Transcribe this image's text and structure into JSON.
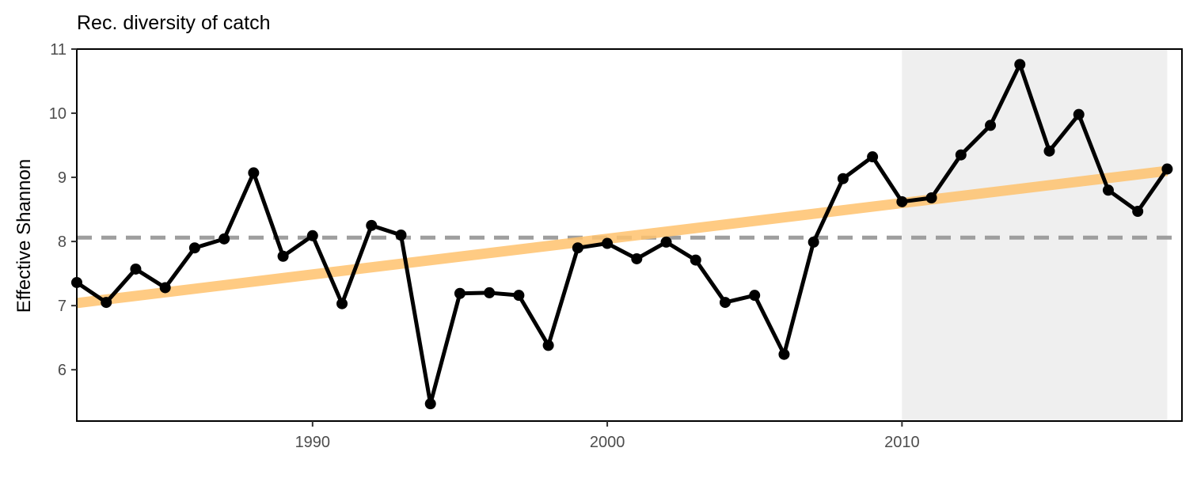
{
  "chart_data": {
    "type": "line",
    "title": "Rec. diversity of catch",
    "xlabel": "",
    "ylabel": "Effective Shannon",
    "xlim": [
      1982,
      2019.5
    ],
    "ylim": [
      5.2,
      11
    ],
    "x_ticks": [
      1990,
      2000,
      2010
    ],
    "y_ticks": [
      6,
      7,
      8,
      9,
      10,
      11
    ],
    "grid": false,
    "legend": "none",
    "shaded_region": {
      "x_start": 2010,
      "x_end": 2019,
      "color": "#efefef"
    },
    "reference_line": {
      "y": 8.06,
      "style": "dashed",
      "color": "#9e9e9e"
    },
    "trend_line": {
      "x": [
        1982,
        2019
      ],
      "y": [
        7.04,
        9.1
      ],
      "color": "#ffc36e"
    },
    "series": [
      {
        "color": "#000000",
        "x": [
          1982,
          1983,
          1984,
          1985,
          1986,
          1987,
          1988,
          1989,
          1990,
          1991,
          1992,
          1993,
          1994,
          1995,
          1996,
          1997,
          1998,
          1999,
          2000,
          2001,
          2002,
          2003,
          2004,
          2005,
          2006,
          2007,
          2008,
          2009,
          2010,
          2011,
          2012,
          2013,
          2014,
          2015,
          2016,
          2017,
          2018,
          2019
        ],
        "y": [
          7.36,
          7.05,
          7.57,
          7.28,
          7.9,
          8.04,
          9.07,
          7.77,
          8.09,
          7.03,
          8.25,
          8.1,
          5.47,
          7.19,
          7.2,
          7.16,
          6.38,
          7.9,
          7.97,
          7.73,
          7.99,
          7.71,
          7.05,
          7.16,
          6.24,
          7.99,
          8.98,
          9.32,
          8.62,
          8.68,
          9.35,
          9.81,
          10.76,
          9.41,
          9.98,
          8.8,
          8.47,
          9.13
        ]
      }
    ]
  }
}
